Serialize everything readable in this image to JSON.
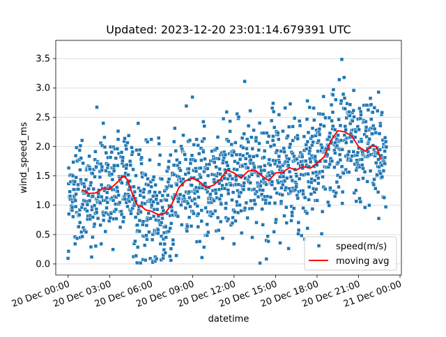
{
  "chart_data": {
    "type": "scatter",
    "title": "Updated: 2023-12-20 23:01:14.679391 UTC",
    "xlabel": "datetime",
    "ylabel": "wind_speed_ms",
    "xlim_hours": [
      -0.9,
      24.1
    ],
    "ylim": [
      -0.19,
      3.81
    ],
    "x_ticks": [
      {
        "hour": 0,
        "label": "20 Dec 00:00"
      },
      {
        "hour": 3,
        "label": "20 Dec 03:00"
      },
      {
        "hour": 6,
        "label": "20 Dec 06:00"
      },
      {
        "hour": 9,
        "label": "20 Dec 09:00"
      },
      {
        "hour": 12,
        "label": "20 Dec 12:00"
      },
      {
        "hour": 15,
        "label": "20 Dec 15:00"
      },
      {
        "hour": 18,
        "label": "20 Dec 18:00"
      },
      {
        "hour": 21,
        "label": "20 Dec 21:00"
      },
      {
        "hour": 24,
        "label": "21 Dec 00:00"
      }
    ],
    "y_ticks": [
      0.0,
      0.5,
      1.0,
      1.5,
      2.0,
      2.5,
      3.0,
      3.5
    ],
    "y_tick_labels": [
      "0.0",
      "0.5",
      "1.0",
      "1.5",
      "2.0",
      "2.5",
      "3.0",
      "3.5"
    ],
    "grid": "horizontal",
    "legend_position": "lower-right",
    "series": [
      {
        "name": "speed(m/s)",
        "kind": "scatter",
        "color": "#1f77b4",
        "time_range_hours": [
          0,
          23
        ],
        "point_count": 1380,
        "spread_std_ms": 0.5
      },
      {
        "name": "moving avg",
        "kind": "line",
        "color": "#ff0000",
        "x_hours": [
          1.0,
          1.5,
          2.0,
          2.5,
          3.0,
          3.5,
          4.0,
          4.3,
          4.6,
          5.0,
          5.3,
          5.6,
          6.0,
          6.5,
          7.0,
          7.5,
          8.0,
          8.5,
          9.0,
          9.5,
          10.0,
          10.5,
          11.0,
          11.5,
          12.0,
          12.5,
          13.0,
          13.5,
          14.0,
          14.5,
          15.0,
          15.5,
          16.0,
          16.5,
          17.0,
          17.5,
          18.0,
          18.5,
          19.0,
          19.5,
          20.0,
          20.5,
          21.0,
          21.5,
          22.0,
          22.3,
          22.6
        ],
        "y_values": [
          1.26,
          1.2,
          1.21,
          1.28,
          1.27,
          1.38,
          1.5,
          1.43,
          1.22,
          1.0,
          0.98,
          0.92,
          0.9,
          0.84,
          0.86,
          1.02,
          1.3,
          1.42,
          1.46,
          1.4,
          1.3,
          1.34,
          1.44,
          1.6,
          1.55,
          1.46,
          1.58,
          1.6,
          1.5,
          1.42,
          1.55,
          1.56,
          1.64,
          1.6,
          1.66,
          1.63,
          1.72,
          1.82,
          2.1,
          2.27,
          2.25,
          2.18,
          2.0,
          1.92,
          2.02,
          2.0,
          1.78
        ]
      }
    ]
  }
}
